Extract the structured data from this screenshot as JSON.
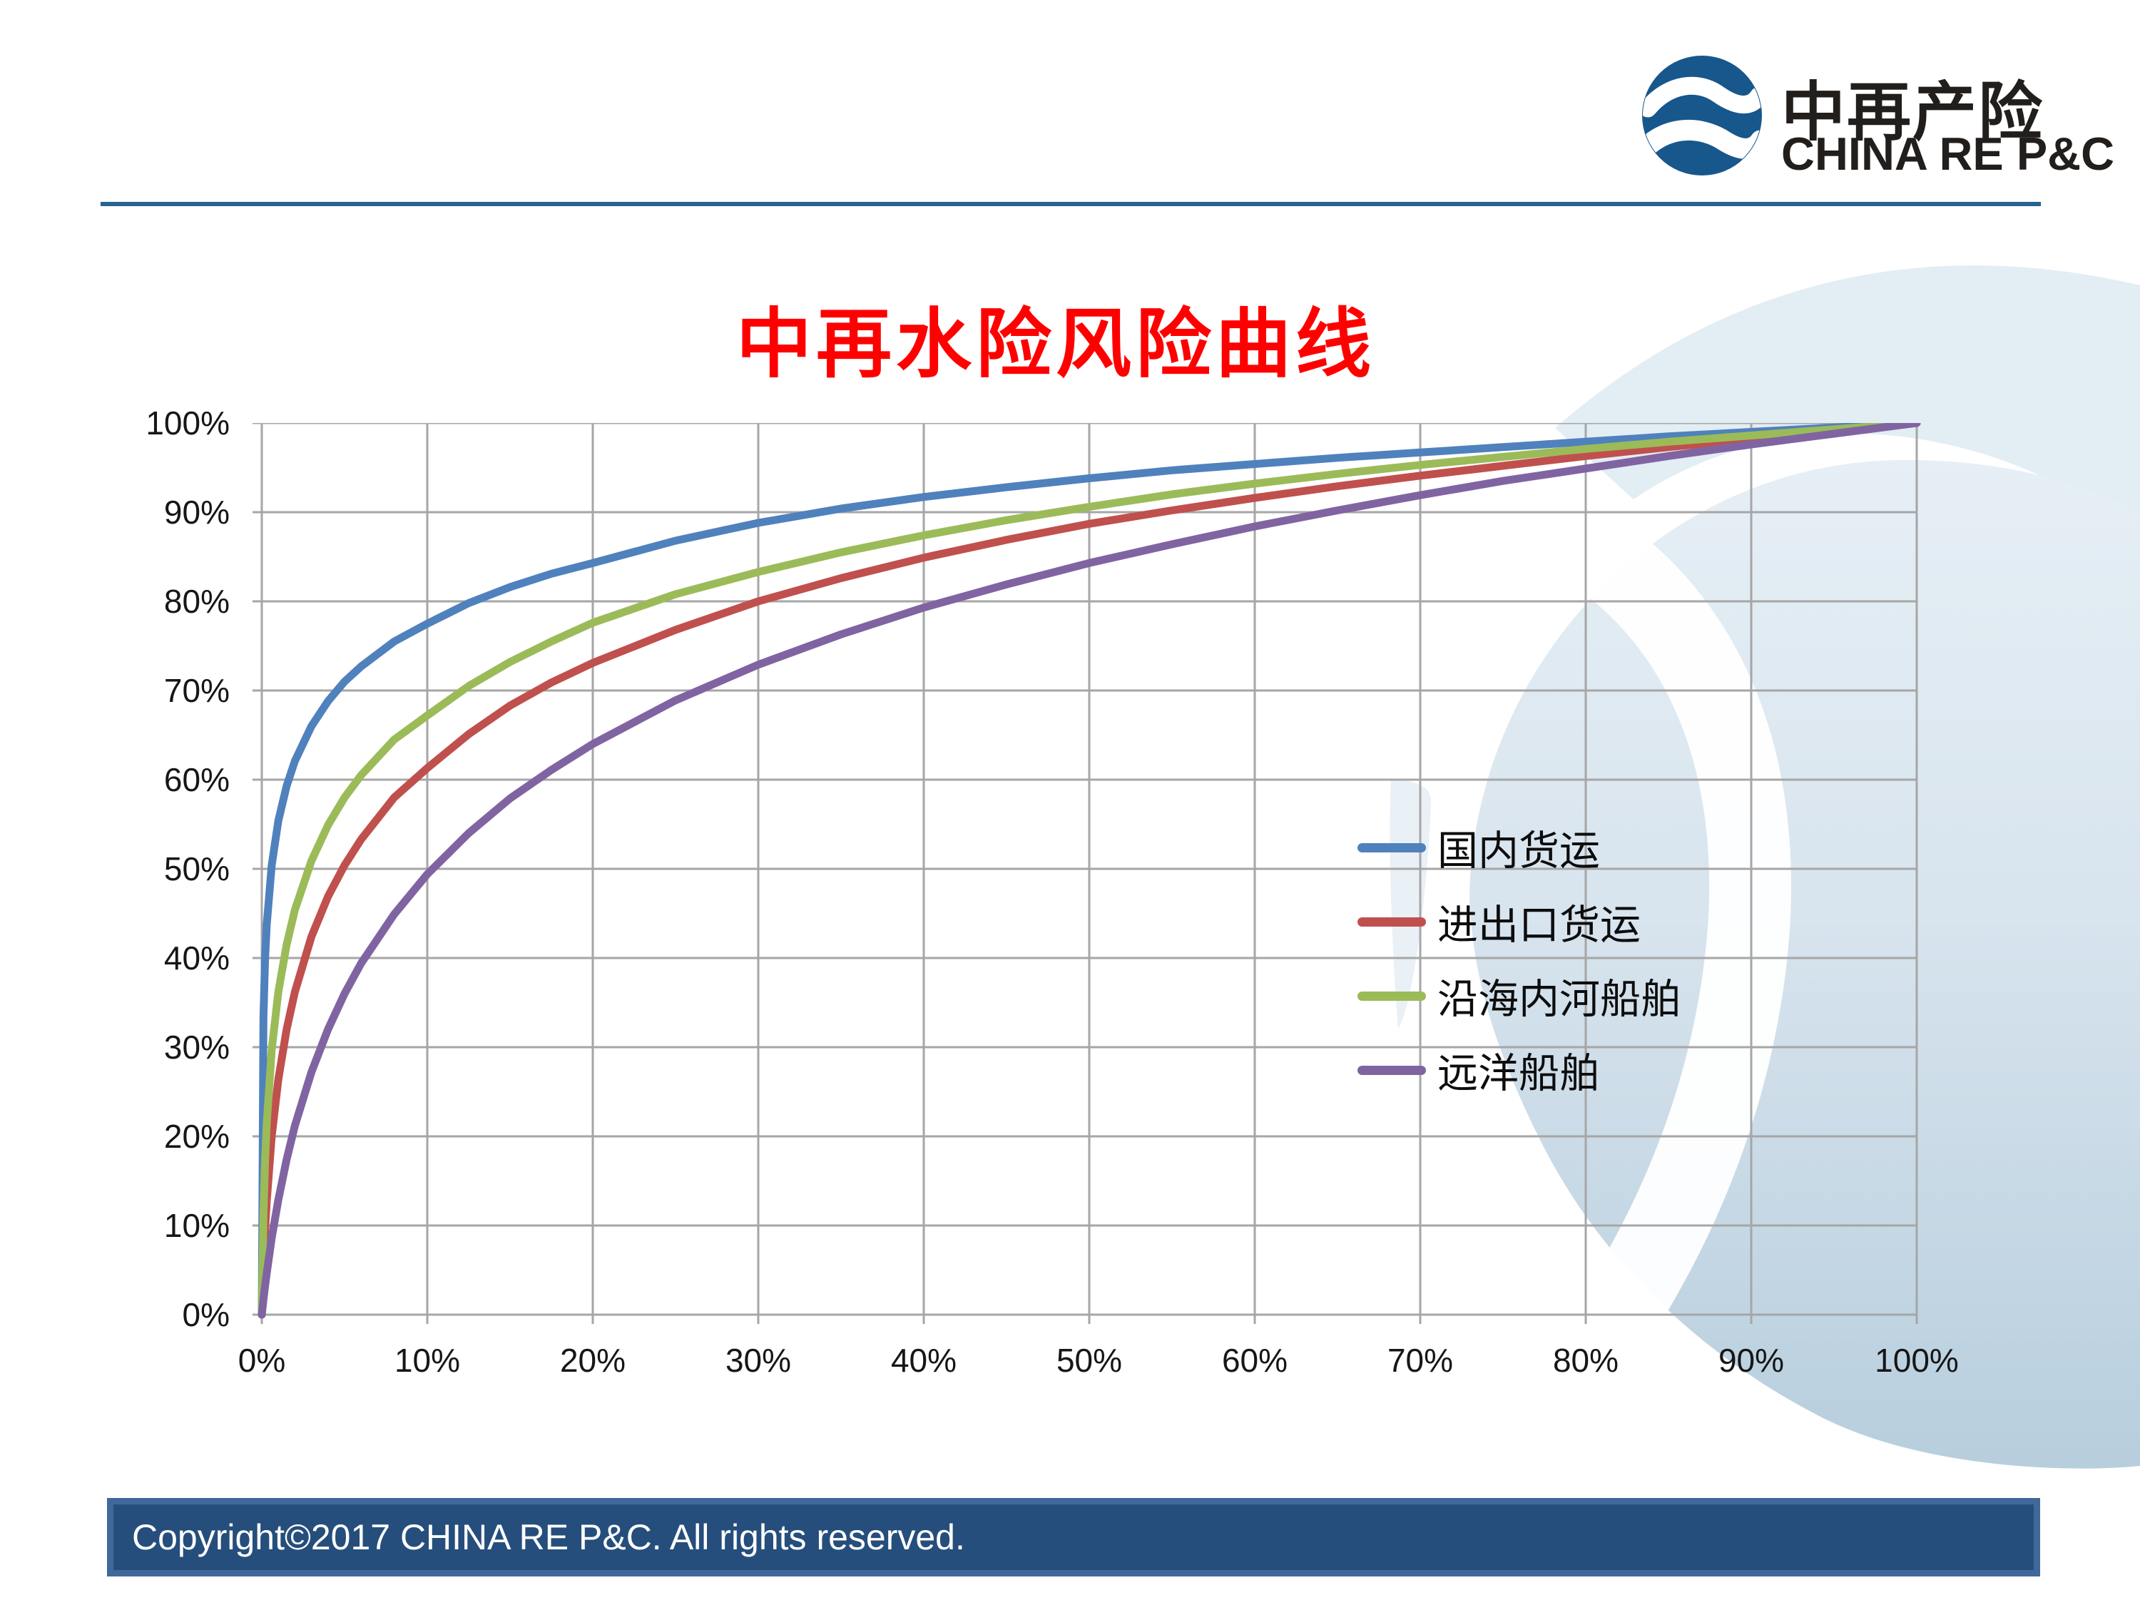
{
  "logo": {
    "name_cn": "中再产险",
    "name_en": "CHINA RE P&C",
    "icon": "wave-sphere-icon",
    "brand_blue": "#17578C"
  },
  "header": {
    "rule_color": "#26648F"
  },
  "title": "中再水险风险曲线",
  "title_color": "#FE0000",
  "footer": {
    "copyright": "Copyright©2017 CHINA RE P&C. All rights reserved.",
    "bar_color": "#264E7C",
    "border_color": "#41689A"
  },
  "chart_data": {
    "type": "line",
    "title": "中再水险风险曲线",
    "xlabel": "",
    "ylabel": "",
    "xlim": [
      0,
      1
    ],
    "ylim": [
      0,
      1
    ],
    "grid": true,
    "grid_color": "#A6A6A6",
    "legend_position": "middle-right",
    "x_ticks": [
      "0%",
      "10%",
      "20%",
      "30%",
      "40%",
      "50%",
      "60%",
      "70%",
      "80%",
      "90%",
      "100%"
    ],
    "y_ticks": [
      "0%",
      "10%",
      "20%",
      "30%",
      "40%",
      "50%",
      "60%",
      "70%",
      "80%",
      "90%",
      "100%"
    ],
    "x": [
      0,
      0.001,
      0.002,
      0.003,
      0.006,
      0.01,
      0.015,
      0.02,
      0.03,
      0.04,
      0.05,
      0.06,
      0.08,
      0.1,
      0.125,
      0.15,
      0.175,
      0.2,
      0.25,
      0.3,
      0.35,
      0.4,
      0.45,
      0.5,
      0.55,
      0.6,
      0.65,
      0.7,
      0.75,
      0.8,
      0.85,
      0.9,
      0.95,
      1.0
    ],
    "series": [
      {
        "name": "国内货运",
        "color": "#4F81BD",
        "values": [
          0,
          0.333,
          0.399,
          0.438,
          0.504,
          0.554,
          0.593,
          0.621,
          0.66,
          0.688,
          0.71,
          0.727,
          0.755,
          0.775,
          0.798,
          0.816,
          0.831,
          0.843,
          0.868,
          0.888,
          0.904,
          0.917,
          0.928,
          0.938,
          0.947,
          0.954,
          0.961,
          0.967,
          0.973,
          0.979,
          0.985,
          0.99,
          0.995,
          1.0
        ]
      },
      {
        "name": "进出口货运",
        "color": "#C0504D",
        "values": [
          0,
          0.054,
          0.095,
          0.128,
          0.2,
          0.264,
          0.32,
          0.362,
          0.424,
          0.469,
          0.504,
          0.533,
          0.58,
          0.613,
          0.651,
          0.683,
          0.709,
          0.731,
          0.768,
          0.8,
          0.826,
          0.849,
          0.869,
          0.887,
          0.902,
          0.916,
          0.929,
          0.941,
          0.952,
          0.963,
          0.973,
          0.982,
          0.991,
          1.0
        ]
      },
      {
        "name": "沿海内河船舶",
        "color": "#9BBB59",
        "values": [
          0,
          0.111,
          0.173,
          0.215,
          0.297,
          0.362,
          0.415,
          0.454,
          0.509,
          0.549,
          0.58,
          0.605,
          0.645,
          0.672,
          0.705,
          0.732,
          0.755,
          0.776,
          0.808,
          0.833,
          0.855,
          0.874,
          0.891,
          0.906,
          0.92,
          0.932,
          0.943,
          0.953,
          0.962,
          0.971,
          0.979,
          0.986,
          0.993,
          1.0
        ]
      },
      {
        "name": "远洋船舶",
        "color": "#8064A2",
        "values": [
          0,
          0.017,
          0.032,
          0.047,
          0.086,
          0.129,
          0.174,
          0.212,
          0.272,
          0.32,
          0.36,
          0.394,
          0.449,
          0.494,
          0.54,
          0.579,
          0.611,
          0.64,
          0.689,
          0.729,
          0.763,
          0.793,
          0.819,
          0.843,
          0.864,
          0.884,
          0.902,
          0.919,
          0.935,
          0.949,
          0.963,
          0.976,
          0.988,
          1.0
        ]
      }
    ]
  }
}
